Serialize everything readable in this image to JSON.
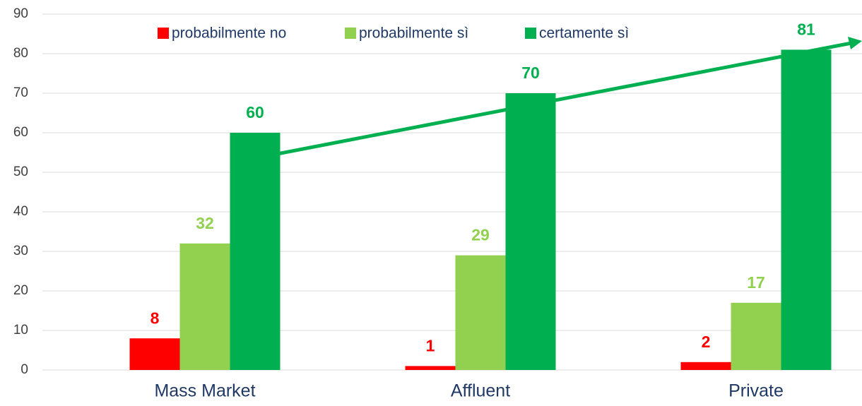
{
  "chart_data": {
    "type": "bar",
    "categories": [
      "Mass Market",
      "Affluent",
      "Private"
    ],
    "series": [
      {
        "name": "probabilmente no",
        "color": "#ff0000",
        "values": [
          8,
          1,
          2
        ]
      },
      {
        "name": "probabilmente sì",
        "color": "#92d050",
        "values": [
          32,
          29,
          17
        ]
      },
      {
        "name": "certamente sì",
        "color": "#00b050",
        "values": [
          60,
          70,
          81
        ]
      }
    ],
    "ylim": [
      0,
      90
    ],
    "yticks": [
      0,
      10,
      20,
      30,
      40,
      50,
      60,
      70,
      80,
      90
    ],
    "grid": true,
    "legend": "top"
  }
}
